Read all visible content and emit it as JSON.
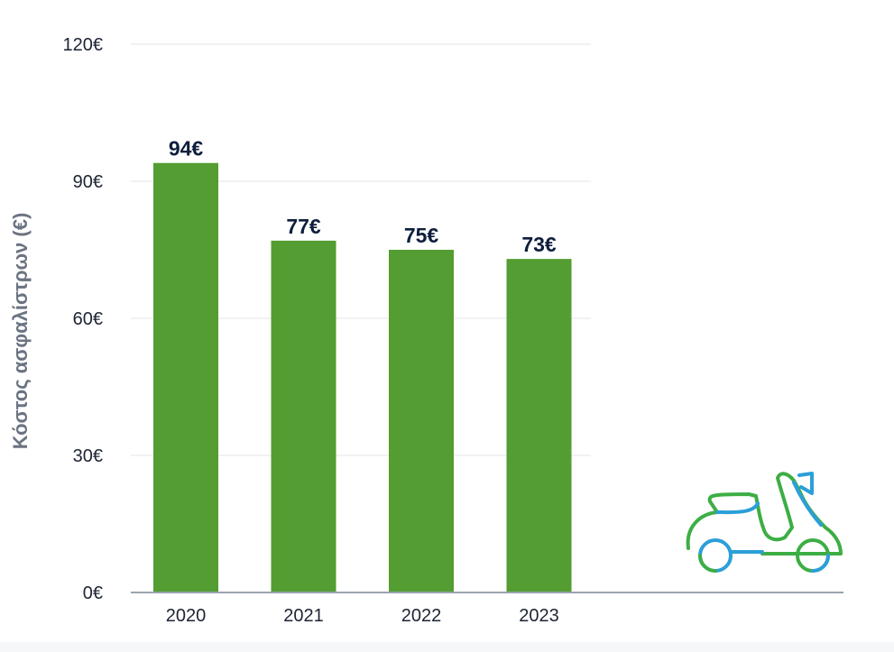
{
  "chart_data": {
    "type": "bar",
    "title": "",
    "xlabel": "",
    "ylabel": "Κόστος ασφαλίστρων (€)",
    "categories": [
      "2020",
      "2021",
      "2022",
      "2023"
    ],
    "values": [
      94,
      77,
      75,
      73
    ],
    "value_labels": [
      "94€",
      "77€",
      "75€",
      "73€"
    ],
    "ylim": [
      0,
      120
    ],
    "yticks": [
      0,
      30,
      60,
      90,
      120
    ],
    "ytick_labels": [
      "0€",
      "30€",
      "60€",
      "90€",
      "120€"
    ],
    "grid": true,
    "bar_color": "#539d32",
    "grid_color": "#eeeeee",
    "axis_color": "#9aa3b0"
  },
  "illustration": {
    "icon": "scooter-icon",
    "colors": [
      "#3dae44",
      "#2b9fd9"
    ]
  }
}
